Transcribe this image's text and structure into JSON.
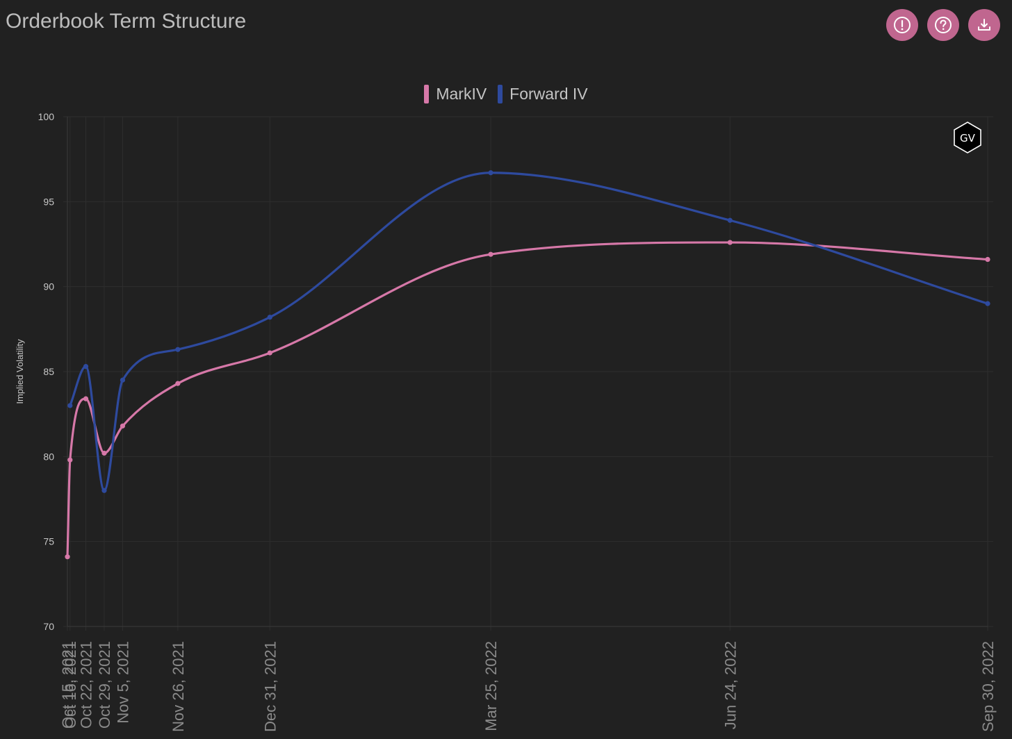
{
  "header": {
    "title": "Orderbook Term Structure",
    "buttons": [
      {
        "name": "info-button",
        "icon": "alert-circle-icon"
      },
      {
        "name": "help-button",
        "icon": "question-circle-icon"
      },
      {
        "name": "download-button",
        "icon": "download-icon"
      }
    ]
  },
  "watermark": {
    "text": "GV"
  },
  "colors": {
    "background": "#212121",
    "accent": "#c0668f",
    "markiv": "#d678a8",
    "forward_iv": "#2e4a9e"
  },
  "chart_data": {
    "type": "line",
    "title": "",
    "xlabel": "",
    "ylabel": "Implied Volatility",
    "ylim": [
      70,
      100
    ],
    "yticks": [
      70,
      75,
      80,
      85,
      90,
      95,
      100
    ],
    "grid": true,
    "legend_position": "top-center",
    "x": [
      "2021-10-15",
      "2021-10-16",
      "2021-10-22",
      "2021-10-29",
      "2021-11-05",
      "2021-11-26",
      "2021-12-31",
      "2022-03-25",
      "2022-06-24",
      "2022-09-30"
    ],
    "x_tick_labels": [
      "Oct 15, 2021",
      "Oct 16, 2021",
      "Oct 22, 2021",
      "Oct 29, 2021",
      "Nov 5, 2021",
      "Nov 26, 2021",
      "Dec 31, 2021",
      "Mar 25, 2022",
      "Jun 24, 2022",
      "Sep 30, 2022"
    ],
    "series": [
      {
        "name": "MarkIV",
        "values": [
          74.1,
          79.8,
          83.4,
          80.2,
          81.8,
          84.3,
          86.1,
          91.9,
          92.6,
          91.6
        ]
      },
      {
        "name": "Forward IV",
        "values": [
          null,
          83.0,
          85.3,
          78.0,
          84.5,
          86.3,
          88.2,
          96.7,
          93.9,
          89.0
        ]
      }
    ]
  }
}
